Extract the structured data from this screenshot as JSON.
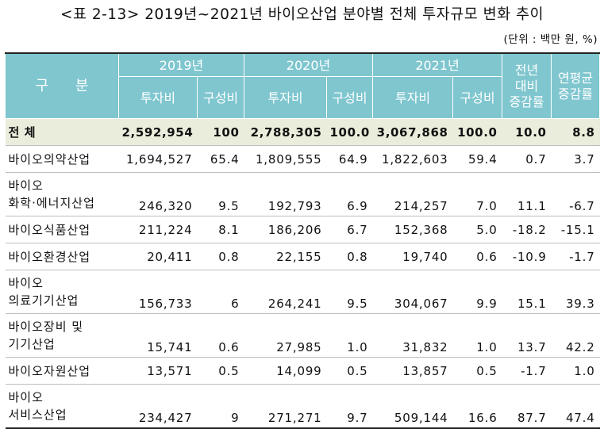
{
  "title": "<표 2-13> 2019년~2021년 바이오산업 분야별 전체 투자규모 변화 추이",
  "unit": "(단위 : 백만 원, %)",
  "header": {
    "gubun": "구 분",
    "years": [
      "2019년",
      "2020년",
      "2021년"
    ],
    "yoy_line1": "전년",
    "yoy_line2": "대비",
    "yoy_line3": "증감률",
    "cagr_line1": "연평균",
    "cagr_line2": "증감률",
    "invest": "투자비",
    "share": "구성비"
  },
  "rows": [
    {
      "label": "전 체",
      "label2": "",
      "v2019": "2,592,954",
      "s2019": "100",
      "v2020": "2,788,305",
      "s2020": "100.0",
      "v2021": "3,067,868",
      "s2021": "100.0",
      "yoy": "10.0",
      "cagr": "8.8"
    },
    {
      "label": "바이오의약산업",
      "label2": "",
      "v2019": "1,694,527",
      "s2019": "65.4",
      "v2020": "1,809,555",
      "s2020": "64.9",
      "v2021": "1,822,603",
      "s2021": "59.4",
      "yoy": "0.7",
      "cagr": "3.7"
    },
    {
      "label": "바이오",
      "label2": "화학·에너지산업",
      "v2019": "246,320",
      "s2019": "9.5",
      "v2020": "192,793",
      "s2020": "6.9",
      "v2021": "214,257",
      "s2021": "7.0",
      "yoy": "11.1",
      "cagr": "-6.7"
    },
    {
      "label": "바이오식품산업",
      "label2": "",
      "v2019": "211,224",
      "s2019": "8.1",
      "v2020": "186,206",
      "s2020": "6.7",
      "v2021": "152,368",
      "s2021": "5.0",
      "yoy": "-18.2",
      "cagr": "-15.1"
    },
    {
      "label": "바이오환경산업",
      "label2": "",
      "v2019": "20,411",
      "s2019": "0.8",
      "v2020": "22,155",
      "s2020": "0.8",
      "v2021": "19,740",
      "s2021": "0.6",
      "yoy": "-10.9",
      "cagr": "-1.7"
    },
    {
      "label": "바이오",
      "label2": "의료기기산업",
      "v2019": "156,733",
      "s2019": "6",
      "v2020": "264,241",
      "s2020": "9.5",
      "v2021": "304,067",
      "s2021": "9.9",
      "yoy": "15.1",
      "cagr": "39.3"
    },
    {
      "label": "바이오장비 및",
      "label2": "기기산업",
      "v2019": "15,741",
      "s2019": "0.6",
      "v2020": "27,985",
      "s2020": "1.0",
      "v2021": "31,832",
      "s2021": "1.0",
      "yoy": "13.7",
      "cagr": "42.2"
    },
    {
      "label": "바이오자원산업",
      "label2": "",
      "v2019": "13,571",
      "s2019": "0.5",
      "v2020": "14,099",
      "s2020": "0.5",
      "v2021": "13,857",
      "s2021": "0.5",
      "yoy": "-1.7",
      "cagr": "1.0"
    },
    {
      "label": "바이오",
      "label2": "서비스산업",
      "v2019": "234,427",
      "s2019": "9",
      "v2020": "271,271",
      "s2020": "9.7",
      "v2021": "509,144",
      "s2021": "16.6",
      "yoy": "87.7",
      "cagr": "47.4"
    }
  ]
}
